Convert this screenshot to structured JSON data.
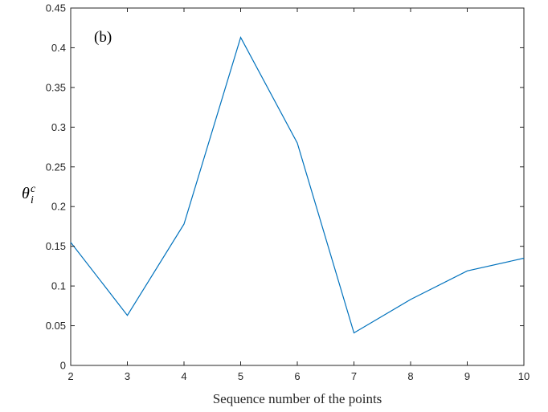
{
  "chart_data": {
    "type": "line",
    "panel_label": "(b)",
    "xlabel": "Sequence number of the points",
    "ylabel": {
      "symbol": "θ",
      "subscript": "i",
      "superscript": "c"
    },
    "xlim": [
      2,
      10
    ],
    "ylim": [
      0,
      0.45
    ],
    "xticks": [
      "2",
      "3",
      "4",
      "5",
      "6",
      "7",
      "8",
      "9",
      "10"
    ],
    "yticks": [
      "0",
      "0.05",
      "0.1",
      "0.15",
      "0.2",
      "0.25",
      "0.3",
      "0.35",
      "0.4",
      "0.45"
    ],
    "grid": false,
    "line_color": "#0072bd",
    "x": [
      2,
      3,
      4,
      5,
      6,
      7,
      8,
      9,
      10
    ],
    "y": [
      0.155,
      0.063,
      0.178,
      0.413,
      0.28,
      0.041,
      0.083,
      0.119,
      0.135
    ]
  }
}
